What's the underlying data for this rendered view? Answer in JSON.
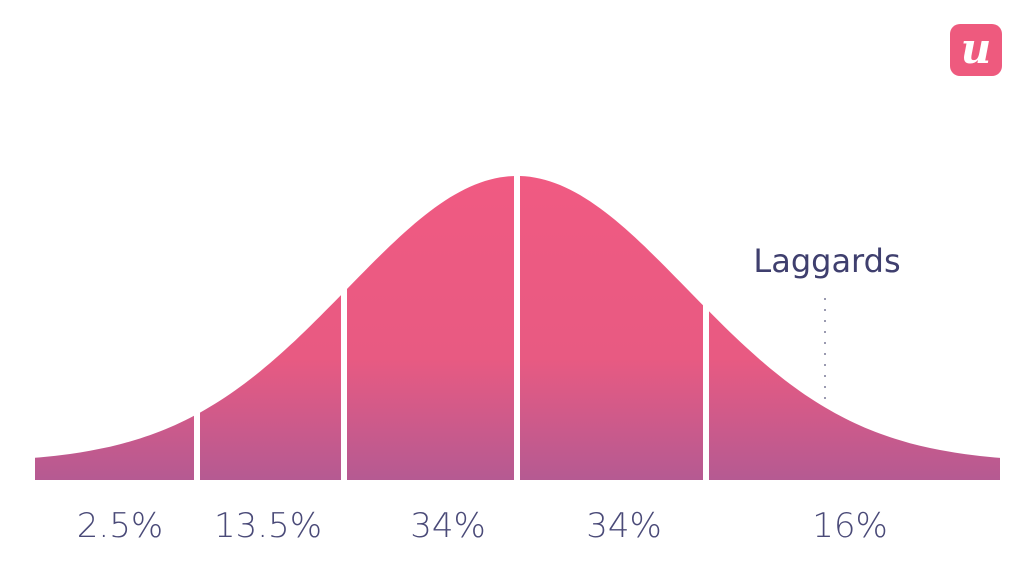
{
  "annotation": "Laggards",
  "logo": "u",
  "segments": [
    {
      "label": "2.5%"
    },
    {
      "label": "13.5%"
    },
    {
      "label": "34%"
    },
    {
      "label": "34%"
    },
    {
      "label": "16%"
    }
  ]
}
